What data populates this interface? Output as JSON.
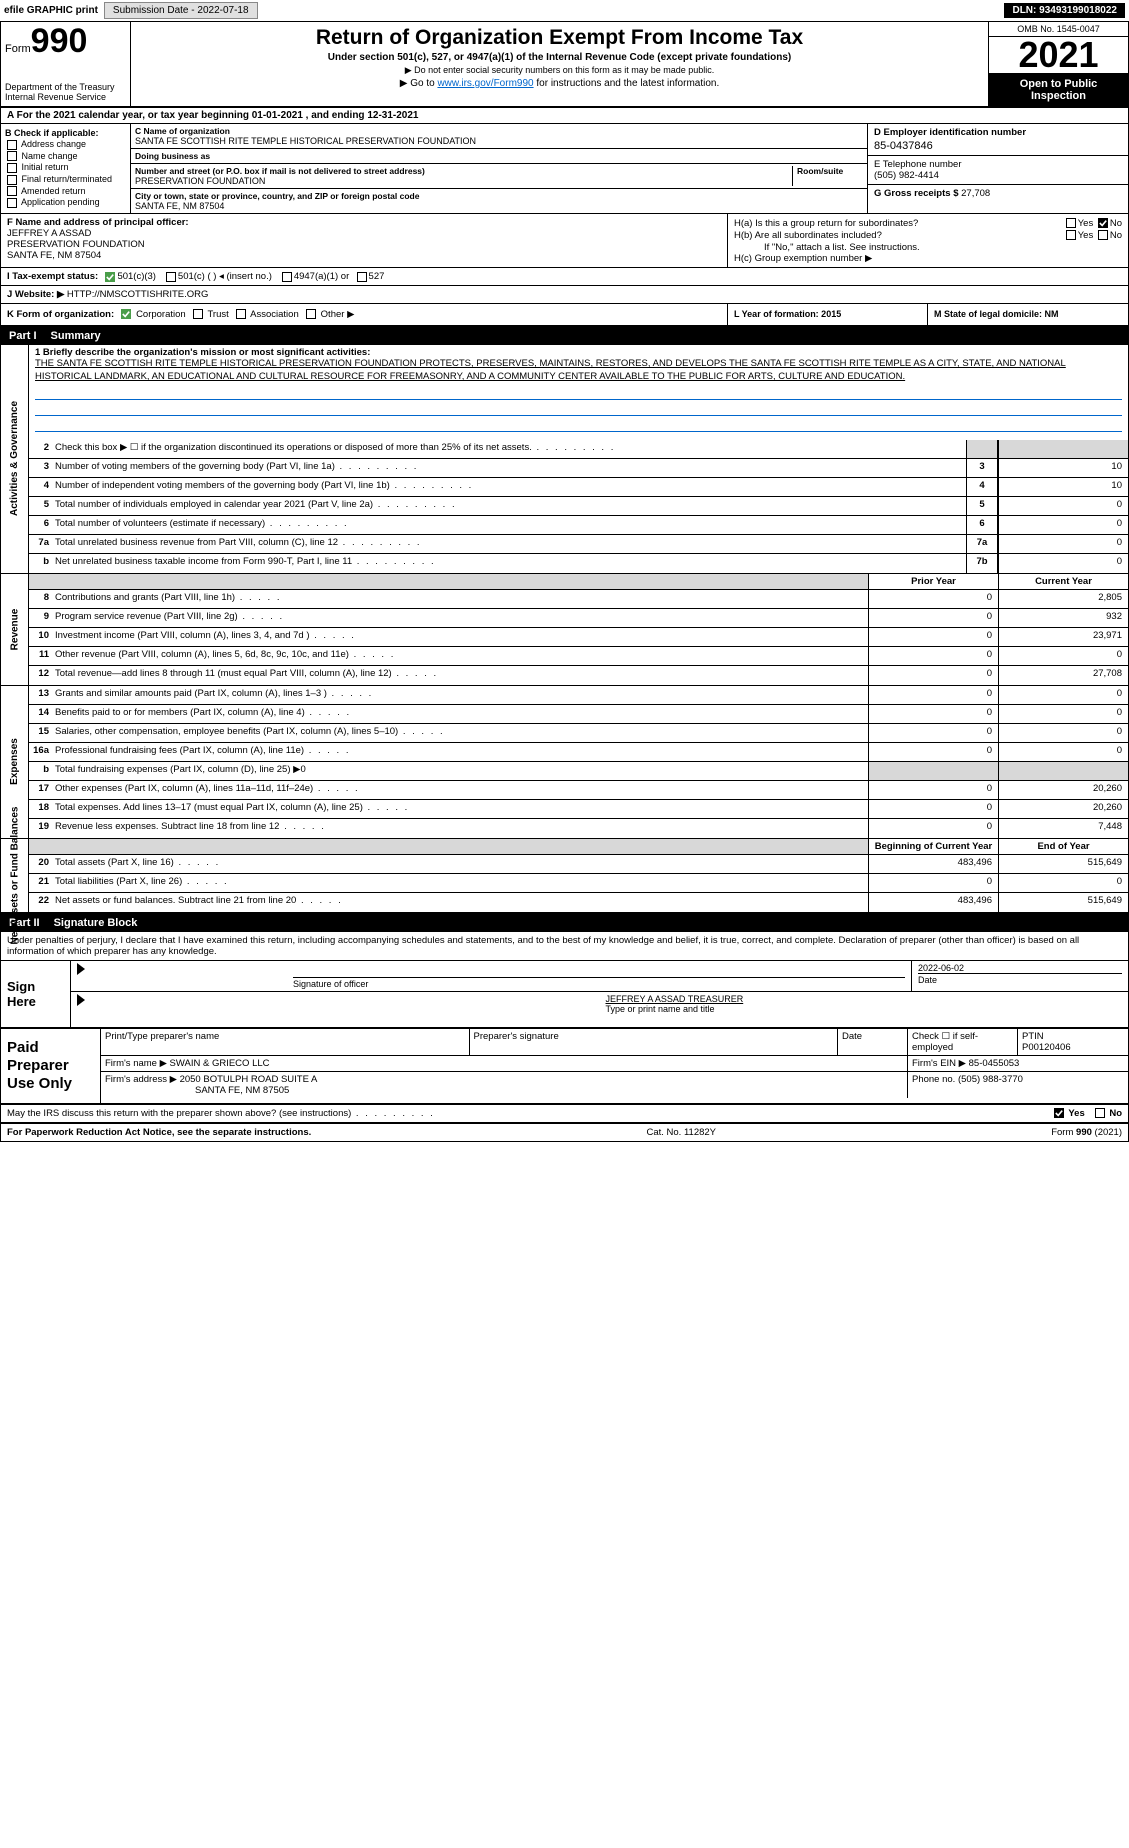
{
  "topbar": {
    "efile": "efile GRAPHIC print",
    "submission": "Submission Date - 2022-07-18",
    "dln": "DLN: 93493199018022"
  },
  "header": {
    "form_word": "Form",
    "form_num": "990",
    "dept": "Department of the Treasury",
    "irs": "Internal Revenue Service",
    "title": "Return of Organization Exempt From Income Tax",
    "sub": "Under section 501(c), 527, or 4947(a)(1) of the Internal Revenue Code (except private foundations)",
    "note": "▶ Do not enter social security numbers on this form as it may be made public.",
    "goto_pre": "▶ Go to ",
    "goto_link": "www.irs.gov/Form990",
    "goto_post": " for instructions and the latest information.",
    "omb": "OMB No. 1545-0047",
    "year": "2021",
    "open": "Open to Public Inspection"
  },
  "row_a": "A For the 2021 calendar year, or tax year beginning 01-01-2021     , and ending 12-31-2021",
  "box_b": {
    "title": "B Check if applicable:",
    "opts": [
      "Address change",
      "Name change",
      "Initial return",
      "Final return/terminated",
      "Amended return",
      "Application pending"
    ]
  },
  "box_c": {
    "name_label": "C Name of organization",
    "name": "SANTA FE SCOTTISH RITE TEMPLE HISTORICAL PRESERVATION FOUNDATION",
    "dba_label": "Doing business as",
    "addr_label": "Number and street (or P.O. box if mail is not delivered to street address)",
    "room_label": "Room/suite",
    "addr": "PRESERVATION FOUNDATION",
    "city_label": "City or town, state or province, country, and ZIP or foreign postal code",
    "city": "SANTA FE, NM  87504"
  },
  "box_d": {
    "ein_label": "D Employer identification number",
    "ein": "85-0437846",
    "tel_label": "E Telephone number",
    "tel": "(505) 982-4414",
    "gross_label": "G Gross receipts $",
    "gross": "27,708"
  },
  "box_f": {
    "label": "F  Name and address of principal officer:",
    "name": "JEFFREY A ASSAD",
    "addr1": "PRESERVATION FOUNDATION",
    "addr2": "SANTA FE, NM  87504"
  },
  "box_h": {
    "a_label": "H(a)  Is this a group return for subordinates?",
    "b_label": "H(b)  Are all subordinates included?",
    "b_note": "If \"No,\" attach a list. See instructions.",
    "c_label": "H(c)  Group exemption number ▶",
    "yes": "Yes",
    "no": "No"
  },
  "row_i": {
    "label": "I   Tax-exempt status:",
    "o1": "501(c)(3)",
    "o2": "501(c) (   ) ◂ (insert no.)",
    "o3": "4947(a)(1) or",
    "o4": "527"
  },
  "row_j": {
    "label": "J   Website: ▶",
    "val": "  HTTP://NMSCOTTISHRITE.ORG"
  },
  "row_k": {
    "label": "K Form of organization:",
    "opts": [
      "Corporation",
      "Trust",
      "Association",
      "Other ▶"
    ],
    "l": "L Year of formation: 2015",
    "m": "M State of legal domicile: NM"
  },
  "part1": {
    "tag": "Part I",
    "title": "Summary"
  },
  "mission": {
    "q1": "1  Briefly describe the organization's mission or most significant activities:",
    "text": "THE SANTA FE SCOTTISH RITE TEMPLE HISTORICAL PRESERVATION FOUNDATION PROTECTS, PRESERVES, MAINTAINS, RESTORES, AND DEVELOPS THE SANTA FE SCOTTISH RITE TEMPLE AS A CITY, STATE, AND NATIONAL HISTORICAL LANDMARK, AN EDUCATIONAL AND CULTURAL RESOURCE FOR FREEMASONRY, AND A COMMUNITY CENTER AVAILABLE TO THE PUBLIC FOR ARTS, CULTURE AND EDUCATION."
  },
  "gov_rows": [
    {
      "n": "2",
      "d": "Check this box ▶ ☐  if the organization discontinued its operations or disposed of more than 25% of its net assets.",
      "mn": "",
      "v": ""
    },
    {
      "n": "3",
      "d": "Number of voting members of the governing body (Part VI, line 1a)",
      "mn": "3",
      "v": "10"
    },
    {
      "n": "4",
      "d": "Number of independent voting members of the governing body (Part VI, line 1b)",
      "mn": "4",
      "v": "10"
    },
    {
      "n": "5",
      "d": "Total number of individuals employed in calendar year 2021 (Part V, line 2a)",
      "mn": "5",
      "v": "0"
    },
    {
      "n": "6",
      "d": "Total number of volunteers (estimate if necessary)",
      "mn": "6",
      "v": "0"
    },
    {
      "n": "7a",
      "d": "Total unrelated business revenue from Part VIII, column (C), line 12",
      "mn": "7a",
      "v": "0"
    },
    {
      "n": "b",
      "d": "Net unrelated business taxable income from Form 990-T, Part I, line 11",
      "mn": "7b",
      "v": "0"
    }
  ],
  "two_col_hdr": {
    "prior": "Prior Year",
    "current": "Current Year"
  },
  "rev_rows": [
    {
      "n": "8",
      "d": "Contributions and grants (Part VIII, line 1h)",
      "p": "0",
      "c": "2,805"
    },
    {
      "n": "9",
      "d": "Program service revenue (Part VIII, line 2g)",
      "p": "0",
      "c": "932"
    },
    {
      "n": "10",
      "d": "Investment income (Part VIII, column (A), lines 3, 4, and 7d )",
      "p": "0",
      "c": "23,971"
    },
    {
      "n": "11",
      "d": "Other revenue (Part VIII, column (A), lines 5, 6d, 8c, 9c, 10c, and 11e)",
      "p": "0",
      "c": "0"
    },
    {
      "n": "12",
      "d": "Total revenue—add lines 8 through 11 (must equal Part VIII, column (A), line 12)",
      "p": "0",
      "c": "27,708"
    }
  ],
  "exp_rows": [
    {
      "n": "13",
      "d": "Grants and similar amounts paid (Part IX, column (A), lines 1–3 )",
      "p": "0",
      "c": "0"
    },
    {
      "n": "14",
      "d": "Benefits paid to or for members (Part IX, column (A), line 4)",
      "p": "0",
      "c": "0"
    },
    {
      "n": "15",
      "d": "Salaries, other compensation, employee benefits (Part IX, column (A), lines 5–10)",
      "p": "0",
      "c": "0"
    },
    {
      "n": "16a",
      "d": "Professional fundraising fees (Part IX, column (A), line 11e)",
      "p": "0",
      "c": "0"
    },
    {
      "n": "b",
      "d": "Total fundraising expenses (Part IX, column (D), line 25) ▶0",
      "p": "",
      "c": "",
      "gray": true
    },
    {
      "n": "17",
      "d": "Other expenses (Part IX, column (A), lines 11a–11d, 11f–24e)",
      "p": "0",
      "c": "20,260"
    },
    {
      "n": "18",
      "d": "Total expenses. Add lines 13–17 (must equal Part IX, column (A), line 25)",
      "p": "0",
      "c": "20,260"
    },
    {
      "n": "19",
      "d": "Revenue less expenses. Subtract line 18 from line 12",
      "p": "0",
      "c": "7,448"
    }
  ],
  "net_hdr": {
    "beg": "Beginning of Current Year",
    "end": "End of Year"
  },
  "net_rows": [
    {
      "n": "20",
      "d": "Total assets (Part X, line 16)",
      "p": "483,496",
      "c": "515,649"
    },
    {
      "n": "21",
      "d": "Total liabilities (Part X, line 26)",
      "p": "0",
      "c": "0"
    },
    {
      "n": "22",
      "d": "Net assets or fund balances. Subtract line 21 from line 20",
      "p": "483,496",
      "c": "515,649"
    }
  ],
  "part2": {
    "tag": "Part II",
    "title": "Signature Block"
  },
  "sig_decl": "Under penalties of perjury, I declare that I have examined this return, including accompanying schedules and statements, and to the best of my knowledge and belief, it is true, correct, and complete. Declaration of preparer (other than officer) is based on all information of which preparer has any knowledge.",
  "sign": {
    "here": "Sign Here",
    "sig_label": "Signature of officer",
    "date_label": "Date",
    "date": "2022-06-02",
    "name": "JEFFREY A ASSAD  TREASURER",
    "name_label": "Type or print name and title"
  },
  "paid": {
    "title": "Paid Preparer Use Only",
    "h_name": "Print/Type preparer's name",
    "h_sig": "Preparer's signature",
    "h_date": "Date",
    "h_check": "Check ☐ if self-employed",
    "h_ptin": "PTIN",
    "ptin": "P00120406",
    "firm_name_l": "Firm's name    ▶",
    "firm_name": "SWAIN & GRIECO LLC",
    "firm_ein_l": "Firm's EIN ▶",
    "firm_ein": "85-0455053",
    "firm_addr_l": "Firm's address ▶",
    "firm_addr": "2050 BOTULPH ROAD SUITE A",
    "firm_city": "SANTA FE, NM  87505",
    "phone_l": "Phone no.",
    "phone": "(505) 988-3770"
  },
  "discuss": {
    "q": "May the IRS discuss this return with the preparer shown above? (see instructions)",
    "yes": "Yes",
    "no": "No"
  },
  "footer": {
    "left": "For Paperwork Reduction Act Notice, see the separate instructions.",
    "mid": "Cat. No. 11282Y",
    "right": "Form 990 (2021)"
  },
  "labels": {
    "vert_gov": "Activities & Governance",
    "vert_rev": "Revenue",
    "vert_exp": "Expenses",
    "vert_net": "Net Assets or Fund Balances"
  }
}
